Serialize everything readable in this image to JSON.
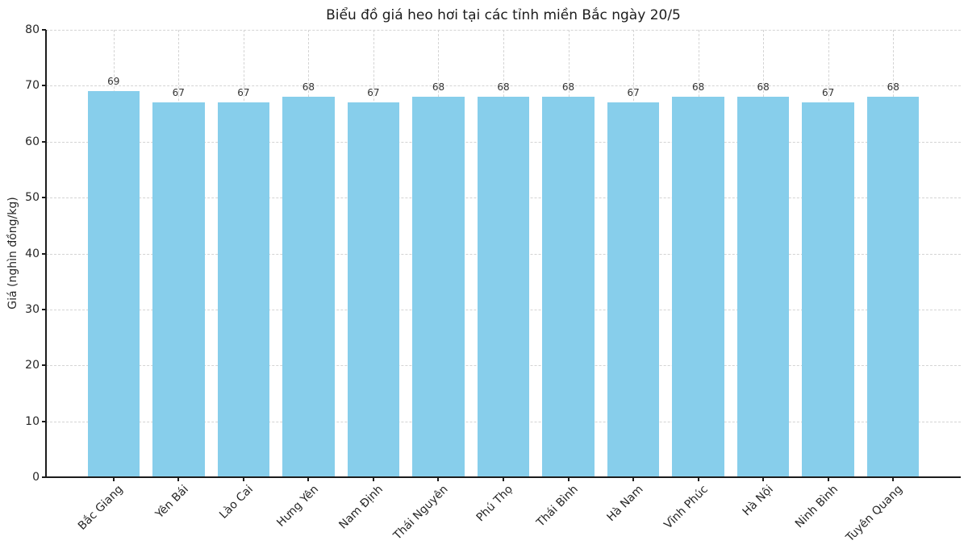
{
  "chart_data": {
    "type": "bar",
    "title": "Biểu đồ giá heo hơi tại các tỉnh miền Bắc ngày 20/5",
    "xlabel": "",
    "ylabel": "Giá (nghìn đồng/kg)",
    "categories": [
      "Bắc Giang",
      "Yên Bái",
      "Lào Cai",
      "Hưng Yên",
      "Nam Định",
      "Thái Nguyên",
      "Phú Thọ",
      "Thái Bình",
      "Hà Nam",
      "Vĩnh Phúc",
      "Hà Nội",
      "Ninh Bình",
      "Tuyên Quang"
    ],
    "values": [
      69,
      67,
      67,
      68,
      67,
      68,
      68,
      68,
      67,
      68,
      68,
      67,
      68
    ],
    "value_labels": [
      "69",
      "67",
      "67",
      "68",
      "67",
      "68",
      "68",
      "68",
      "67",
      "68",
      "68",
      "67",
      "68"
    ],
    "ylim": [
      0,
      80
    ],
    "yticks": [
      0,
      10,
      20,
      30,
      40,
      50,
      60,
      70,
      80
    ],
    "bar_color": "#87CEEB",
    "grid": {
      "visible": true,
      "style": "dashed",
      "color": "#d4d4d4"
    },
    "legend": "none"
  }
}
